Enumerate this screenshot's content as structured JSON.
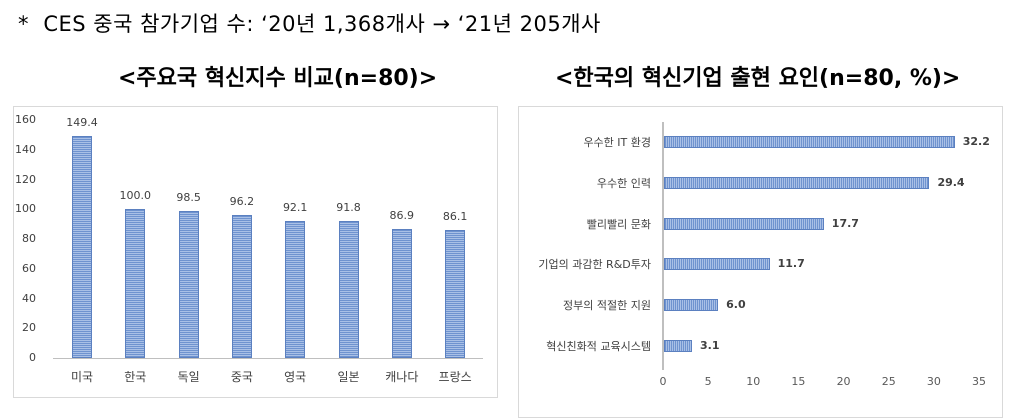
{
  "note": "*  CES 중국 참가기업 수: ‘20년 1,368개사 → ‘21년 205개사",
  "titles": {
    "left": "<주요국 혁신지수 비교(n=80)>",
    "right": "<한국의 혁신기업 출현 요인(n=80, %)>"
  },
  "colors": {
    "bar": "#6f93cf",
    "bar_light": "#a9c0e6",
    "axis": "#bfbfbf",
    "text": "#404040"
  },
  "chart_data": [
    {
      "type": "bar",
      "title": "<주요국 혁신지수 비교(n=80)>",
      "categories": [
        "미국",
        "한국",
        "독일",
        "중국",
        "영국",
        "일본",
        "캐나다",
        "프랑스"
      ],
      "values": [
        149.4,
        100.0,
        98.5,
        96.2,
        92.1,
        91.8,
        86.9,
        86.1
      ],
      "value_labels": [
        "149.4",
        "100.0",
        "98.5",
        "96.2",
        "92.1",
        "91.8",
        "86.9",
        "86.1"
      ],
      "xlabel": "",
      "ylabel": "",
      "ylim": [
        0,
        160
      ],
      "yticks": [
        "0",
        "20",
        "40",
        "60",
        "80",
        "100",
        "120",
        "140",
        "160"
      ],
      "grid": false,
      "legend": null
    },
    {
      "type": "bar",
      "orientation": "horizontal",
      "title": "<한국의 혁신기업 출현 요인(n=80, %)>",
      "categories": [
        "우수한 IT 환경",
        "우수한 인력",
        "빨리빨리 문화",
        "기업의 과감한 R&D투자",
        "정부의 적절한 지원",
        "혁신친화적 교육시스템"
      ],
      "values": [
        32.2,
        29.4,
        17.7,
        11.7,
        6.0,
        3.1
      ],
      "value_labels": [
        "32.2",
        "29.4",
        "17.7",
        "11.7",
        "6.0",
        "3.1"
      ],
      "xlabel": "",
      "ylabel": "",
      "xlim": [
        0,
        35
      ],
      "xticks": [
        "0",
        "5",
        "10",
        "15",
        "20",
        "25",
        "30",
        "35"
      ],
      "grid": false,
      "legend": null
    }
  ]
}
